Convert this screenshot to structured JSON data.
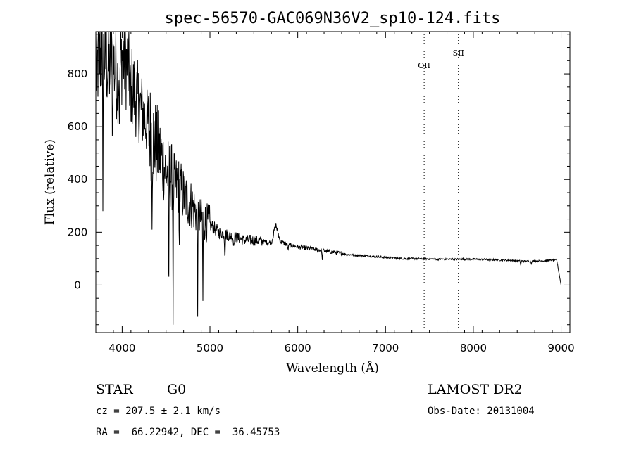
{
  "chart_data": {
    "type": "line",
    "title": "spec-56570-GAC069N36V2_sp10-124.fits",
    "xlabel": "Wavelength (Å)",
    "ylabel": "Flux (relative)",
    "xlim": [
      3700,
      9100
    ],
    "ylim": [
      -180,
      960
    ],
    "xticks": [
      4000,
      5000,
      6000,
      7000,
      8000,
      9000
    ],
    "yticks": [
      0,
      200,
      400,
      600,
      800
    ],
    "grid": false,
    "series": [
      {
        "x": [
          3700,
          3750,
          3800,
          3850,
          3900,
          3950,
          4000,
          4050,
          4100,
          4150,
          4200,
          4250,
          4300,
          4350,
          4400,
          4450,
          4500,
          4550,
          4600,
          4650,
          4700,
          4750,
          4800,
          4850,
          4900,
          4950,
          5000,
          5100,
          5200,
          5300,
          5400,
          5500,
          5600,
          5700,
          5750,
          5800,
          5900,
          6000,
          6200,
          6400,
          6600,
          6800,
          7000,
          7200,
          7400,
          7600,
          7800,
          8000,
          8200,
          8400,
          8600,
          8800,
          8950,
          9000
        ],
        "y": [
          800,
          870,
          860,
          820,
          840,
          780,
          870,
          840,
          760,
          720,
          680,
          640,
          600,
          560,
          520,
          480,
          430,
          420,
          380,
          370,
          340,
          320,
          300,
          270,
          250,
          240,
          230,
          200,
          190,
          180,
          170,
          170,
          165,
          160,
          230,
          165,
          150,
          145,
          135,
          125,
          115,
          110,
          105,
          100,
          100,
          98,
          98,
          98,
          96,
          94,
          90,
          92,
          95,
          0
        ]
      }
    ],
    "absorption_dips": [
      {
        "x": 3780,
        "y": 280
      },
      {
        "x": 3890,
        "y": 500
      },
      {
        "x": 3970,
        "y": 560
      },
      {
        "x": 4100,
        "y": 620
      },
      {
        "x": 4340,
        "y": 210
      },
      {
        "x": 4530,
        "y": -180
      },
      {
        "x": 4580,
        "y": -150
      },
      {
        "x": 4650,
        "y": 100
      },
      {
        "x": 4860,
        "y": -120
      },
      {
        "x": 4920,
        "y": -60
      },
      {
        "x": 5170,
        "y": 90
      },
      {
        "x": 5270,
        "y": 140
      },
      {
        "x": 5890,
        "y": 130
      },
      {
        "x": 6280,
        "y": 95
      },
      {
        "x": 6560,
        "y": 110
      },
      {
        "x": 8540,
        "y": 75
      },
      {
        "x": 8660,
        "y": 80
      }
    ],
    "annotations": [
      {
        "label": "OII",
        "x": 7440
      },
      {
        "label": "SII",
        "x": 7830
      }
    ]
  },
  "info": {
    "class_label": "STAR",
    "subclass": "G0",
    "survey": "LAMOST DR2",
    "cz": "cz = 207.5 ± 2.1 km/s",
    "obs_date": "Obs-Date: 20131004",
    "coords": "RA =  66.22942, DEC =  36.45753"
  }
}
